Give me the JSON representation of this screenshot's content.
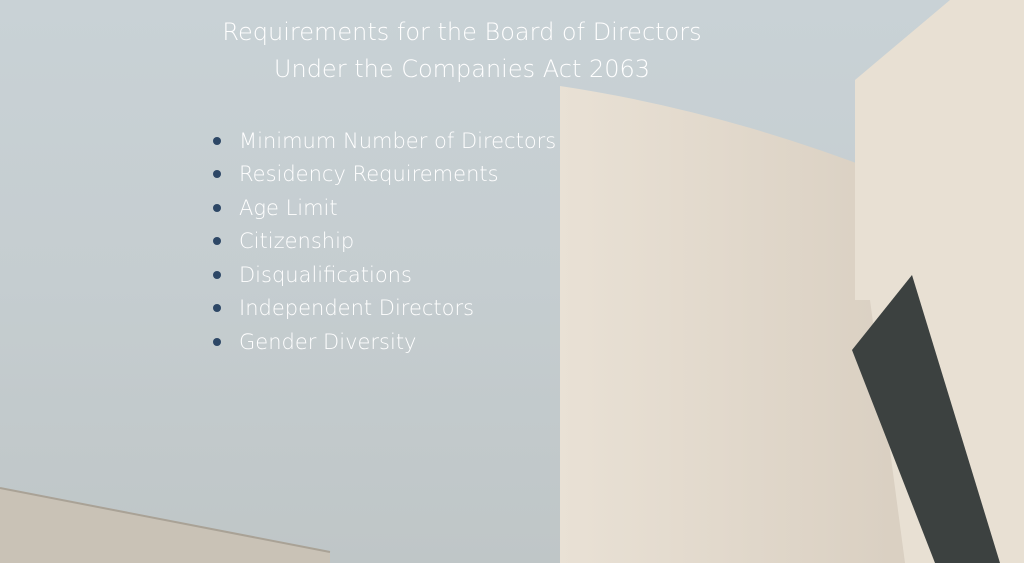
{
  "title": "Requirements for the Board of Directors Under the Companies Act 2063",
  "items": [
    "Minimum Number of Directors",
    "Residency Requirements",
    "Age Limit",
    "Citizenship",
    "Disqualifications",
    "Independent Directors",
    "Gender Diversity"
  ],
  "colors": {
    "bullet": "#2d4766",
    "text": "#ffffff",
    "sky": "#c9d2d6",
    "building": "#e6ddd0"
  }
}
